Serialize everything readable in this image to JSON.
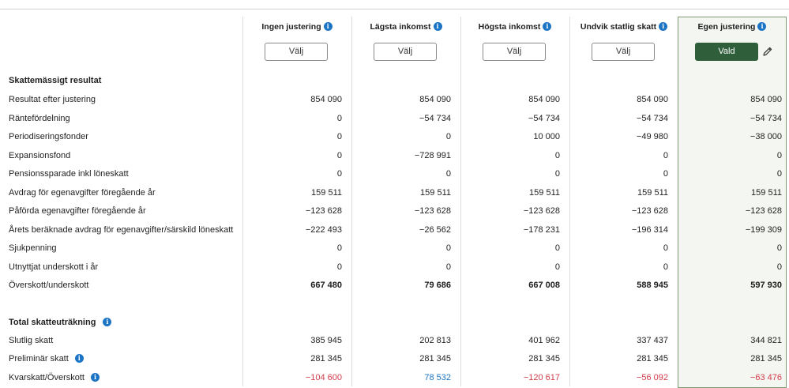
{
  "columns": [
    {
      "title": "Ingen justering",
      "button": "Välj",
      "selected": false
    },
    {
      "title": "Lägsta inkomst",
      "button": "Välj",
      "selected": false
    },
    {
      "title": "Högsta inkomst",
      "button": "Välj",
      "selected": false
    },
    {
      "title": "Undvik statlig skatt",
      "button": "Välj",
      "selected": false
    },
    {
      "title": "Egen justering",
      "button": "Vald",
      "selected": true
    }
  ],
  "section1": {
    "title": "Skattemässigt resultat",
    "rows": [
      {
        "label": "Resultat efter justering",
        "values": [
          "854 090",
          "854 090",
          "854 090",
          "854 090",
          "854 090"
        ]
      },
      {
        "label": "Räntefördelning",
        "values": [
          "0",
          "−54 734",
          "−54 734",
          "−54 734",
          "−54 734"
        ]
      },
      {
        "label": "Periodiseringsfonder",
        "values": [
          "0",
          "0",
          "10 000",
          "−49 980",
          "−38 000"
        ]
      },
      {
        "label": "Expansionsfond",
        "values": [
          "0",
          "−728 991",
          "0",
          "0",
          "0"
        ]
      },
      {
        "label": "Pensionssparade inkl löneskatt",
        "values": [
          "0",
          "0",
          "0",
          "0",
          "0"
        ]
      },
      {
        "label": "Avdrag för egenavgifter föregående år",
        "values": [
          "159 511",
          "159 511",
          "159 511",
          "159 511",
          "159 511"
        ]
      },
      {
        "label": "Påförda egenavgifter föregående år",
        "values": [
          "−123 628",
          "−123 628",
          "−123 628",
          "−123 628",
          "−123 628"
        ]
      },
      {
        "label": "Årets beräknade avdrag för egenavgifter/särskild löneskatt",
        "values": [
          "−222 493",
          "−26 562",
          "−178 231",
          "−196 314",
          "−199 309"
        ]
      },
      {
        "label": "Sjukpenning",
        "values": [
          "0",
          "0",
          "0",
          "0",
          "0"
        ]
      },
      {
        "label": "Utnyttjat underskott i år",
        "values": [
          "0",
          "0",
          "0",
          "0",
          "0"
        ]
      },
      {
        "label": "Överskott/underskott",
        "values": [
          "667 480",
          "79 686",
          "667 008",
          "588 945",
          "597 930"
        ],
        "bold": true
      }
    ]
  },
  "section2": {
    "title": "Total skatteuträkning",
    "rows": [
      {
        "label": "Slutlig skatt",
        "values": [
          "385 945",
          "202 813",
          "401 962",
          "337 437",
          "344 821"
        ],
        "info": false
      },
      {
        "label": "Preliminär skatt",
        "values": [
          "281 345",
          "281 345",
          "281 345",
          "281 345",
          "281 345"
        ],
        "info": true
      },
      {
        "label": "Kvarskatt/Överskott",
        "values": [
          "−104 600",
          "78 532",
          "−120 617",
          "−56 092",
          "−63 476"
        ],
        "info": true,
        "colors": [
          "neg",
          "pos",
          "neg",
          "neg",
          "neg"
        ]
      }
    ]
  },
  "icons": {
    "info": "info-icon",
    "edit": "pencil-icon"
  },
  "colors": {
    "selected_button": "#2e5e3a",
    "info": "#1c74c4",
    "negative": "#d23c4a",
    "positive": "#1c74c4"
  }
}
